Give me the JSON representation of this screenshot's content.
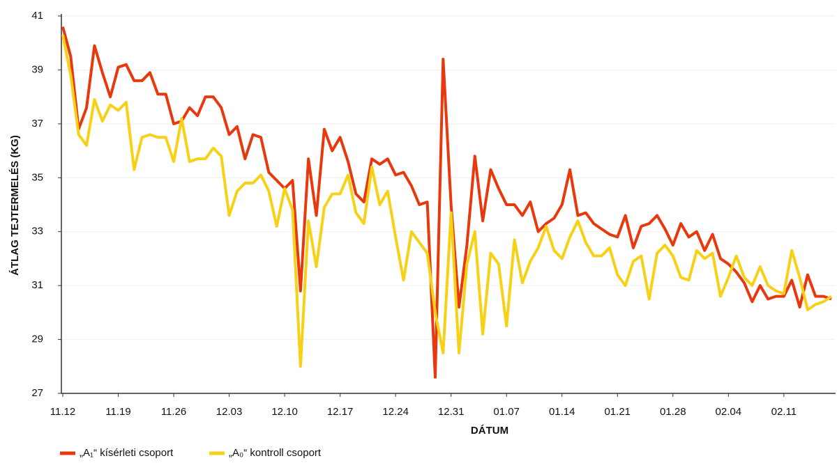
{
  "chart_data": {
    "type": "line",
    "y_label": "ÁTLAG TEJTERMELÉS (KG)",
    "x_label": "DÁTUM",
    "categories": [
      "11.12",
      null,
      null,
      null,
      null,
      null,
      null,
      "11.19",
      null,
      null,
      null,
      null,
      null,
      null,
      "11.26",
      null,
      null,
      null,
      null,
      null,
      null,
      "12.03",
      null,
      null,
      null,
      null,
      null,
      null,
      "12.10",
      null,
      null,
      null,
      null,
      null,
      null,
      "12.17",
      null,
      null,
      null,
      null,
      null,
      null,
      "12.24",
      null,
      null,
      null,
      null,
      null,
      null,
      "12.31",
      null,
      null,
      null,
      null,
      null,
      null,
      "01.07",
      null,
      null,
      null,
      null,
      null,
      null,
      "01.14",
      null,
      null,
      null,
      null,
      null,
      null,
      "01.21",
      null,
      null,
      null,
      null,
      null,
      null,
      "01.28",
      null,
      null,
      null,
      null,
      null,
      null,
      "02.04",
      null,
      null,
      null,
      null,
      null,
      null,
      "02.11",
      null,
      null,
      null,
      null,
      null,
      null
    ],
    "series": [
      {
        "name": "„A₁“ kísérleti csoport",
        "color": "#e8380d",
        "values": [
          40.6,
          39.5,
          36.8,
          37.6,
          39.9,
          38.9,
          38.0,
          39.1,
          39.2,
          38.6,
          38.6,
          38.9,
          38.1,
          38.1,
          37.0,
          37.1,
          37.6,
          37.3,
          38.0,
          38.0,
          37.6,
          36.6,
          36.9,
          35.7,
          36.6,
          36.5,
          35.2,
          34.9,
          34.6,
          34.9,
          30.8,
          35.7,
          33.6,
          36.8,
          36.0,
          36.5,
          35.6,
          34.4,
          34.1,
          35.7,
          35.5,
          35.7,
          35.1,
          35.2,
          34.7,
          34.0,
          34.1,
          27.6,
          39.4,
          34.0,
          30.2,
          32.5,
          35.8,
          33.4,
          35.3,
          34.6,
          34.0,
          34.0,
          33.6,
          34.1,
          33.0,
          33.3,
          33.5,
          34.0,
          35.3,
          33.6,
          33.7,
          33.3,
          33.1,
          32.9,
          32.8,
          33.6,
          32.4,
          33.2,
          33.3,
          33.6,
          33.1,
          32.5,
          33.3,
          32.8,
          33.0,
          32.3,
          32.9,
          32.0,
          31.8,
          31.5,
          31.1,
          30.4,
          31.0,
          30.5,
          30.6,
          30.6,
          31.2,
          30.2,
          31.4,
          30.6,
          30.6,
          30.5
        ]
      },
      {
        "name": "„A₀“ kontroll csoport",
        "color": "#f7d117",
        "values": [
          40.3,
          38.8,
          36.6,
          36.2,
          37.9,
          37.1,
          37.7,
          37.5,
          37.8,
          35.3,
          36.5,
          36.6,
          36.5,
          36.5,
          35.6,
          37.2,
          35.6,
          35.7,
          35.7,
          36.1,
          35.8,
          33.6,
          34.5,
          34.8,
          34.8,
          35.1,
          34.5,
          33.2,
          34.6,
          33.8,
          28.0,
          33.4,
          31.7,
          33.9,
          34.4,
          34.4,
          35.1,
          33.7,
          33.3,
          35.4,
          34.0,
          34.5,
          32.8,
          31.2,
          33.0,
          32.6,
          32.2,
          30.0,
          28.5,
          33.7,
          28.5,
          31.8,
          33.0,
          29.2,
          32.2,
          31.8,
          29.5,
          32.7,
          31.1,
          31.9,
          32.4,
          33.2,
          32.3,
          32.0,
          32.8,
          33.4,
          32.6,
          32.1,
          32.1,
          32.4,
          31.4,
          31.0,
          31.9,
          32.1,
          30.5,
          32.2,
          32.5,
          32.1,
          31.3,
          31.2,
          32.3,
          32.0,
          32.2,
          30.6,
          31.3,
          32.1,
          31.3,
          31.0,
          31.7,
          31.0,
          30.8,
          30.7,
          32.3,
          31.3,
          30.1,
          30.3,
          30.4,
          30.6
        ]
      }
    ],
    "ylim": [
      27,
      41
    ],
    "yticks": [
      27,
      29,
      31,
      33,
      35,
      37,
      39,
      41
    ],
    "grid": true,
    "legend": "bottom-left"
  }
}
